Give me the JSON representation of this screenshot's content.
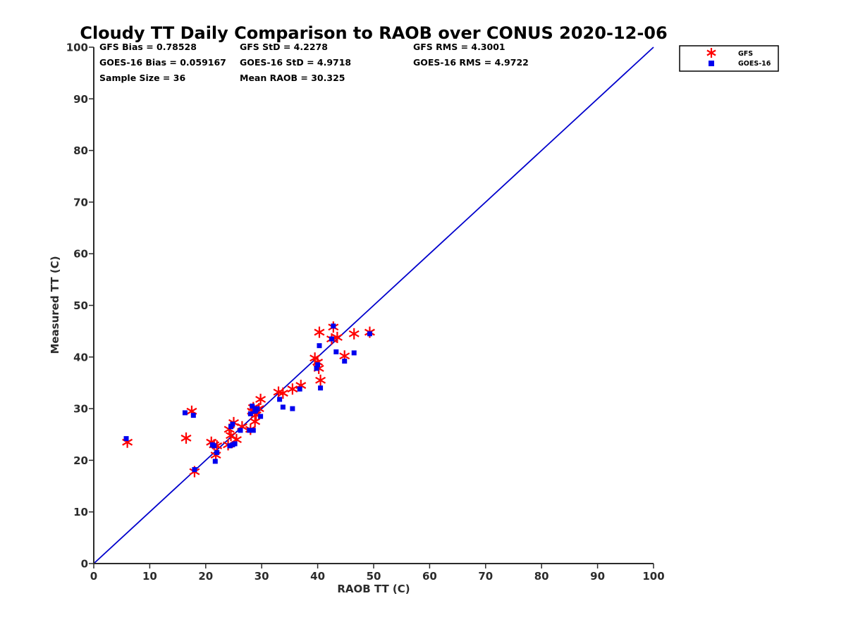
{
  "chart_data": {
    "type": "scatter",
    "title": "Cloudy TT Daily Comparison to RAOB over CONUS 2020-12-06",
    "xlabel": "RAOB TT (C)",
    "ylabel": "Measured TT (C)",
    "xlim": [
      0,
      100
    ],
    "ylim": [
      0,
      100
    ],
    "xticks": [
      "0",
      "10",
      "20",
      "30",
      "40",
      "50",
      "60",
      "70",
      "80",
      "90",
      "100"
    ],
    "yticks": [
      "0",
      "10",
      "20",
      "30",
      "40",
      "50",
      "60",
      "70",
      "80",
      "90",
      "100"
    ],
    "grid": false,
    "legend_position": "top-right",
    "stats": [
      [
        "GFS Bias = 0.78528",
        "GFS StD = 4.2278",
        "GFS RMS = 4.3001"
      ],
      [
        "GOES-16 Bias = 0.059167",
        "GOES-16 StD = 4.9718",
        "GOES-16 RMS = 4.9722"
      ],
      [
        "Sample Size = 36",
        "Mean RAOB = 30.325",
        ""
      ]
    ],
    "reference_line": {
      "x": [
        0,
        100
      ],
      "y": [
        0,
        100
      ],
      "color": "#0000cc"
    },
    "series": [
      {
        "name": "GFS",
        "marker": "asterisk",
        "color": "#ff0000",
        "points": [
          [
            6.0,
            23.5
          ],
          [
            16.5,
            24.3
          ],
          [
            17.5,
            29.5
          ],
          [
            18.0,
            17.8
          ],
          [
            21.0,
            23.5
          ],
          [
            21.5,
            23.0
          ],
          [
            21.8,
            21.0
          ],
          [
            22.0,
            22.8
          ],
          [
            24.0,
            23.0
          ],
          [
            24.2,
            26.0
          ],
          [
            24.5,
            24.8
          ],
          [
            25.0,
            27.3
          ],
          [
            25.5,
            24.0
          ],
          [
            26.5,
            26.5
          ],
          [
            28.0,
            26.0
          ],
          [
            28.3,
            29.5
          ],
          [
            28.8,
            27.5
          ],
          [
            29.0,
            28.8
          ],
          [
            29.5,
            30.0
          ],
          [
            29.8,
            31.8
          ],
          [
            33.0,
            33.2
          ],
          [
            33.8,
            33.0
          ],
          [
            35.5,
            33.8
          ],
          [
            37.0,
            34.5
          ],
          [
            39.5,
            39.8
          ],
          [
            40.2,
            37.8
          ],
          [
            40.3,
            44.8
          ],
          [
            40.5,
            35.5
          ],
          [
            42.5,
            43.5
          ],
          [
            42.8,
            45.8
          ],
          [
            43.5,
            43.8
          ],
          [
            44.8,
            40.2
          ],
          [
            46.5,
            44.5
          ],
          [
            49.3,
            44.8
          ],
          [
            40.0,
            39.0
          ],
          [
            28.5,
            30.2
          ]
        ]
      },
      {
        "name": "GOES-16",
        "marker": "square",
        "color": "#0000ee",
        "points": [
          [
            5.8,
            24.2
          ],
          [
            16.3,
            29.2
          ],
          [
            17.8,
            28.7
          ],
          [
            18.0,
            18.2
          ],
          [
            21.2,
            23.0
          ],
          [
            21.5,
            22.8
          ],
          [
            21.7,
            19.8
          ],
          [
            22.0,
            21.5
          ],
          [
            24.3,
            22.8
          ],
          [
            24.5,
            26.5
          ],
          [
            24.8,
            23.0
          ],
          [
            25.2,
            23.2
          ],
          [
            24.8,
            27.0
          ],
          [
            26.2,
            25.8
          ],
          [
            27.8,
            25.8
          ],
          [
            28.3,
            30.5
          ],
          [
            28.5,
            25.8
          ],
          [
            28.8,
            29.5
          ],
          [
            29.2,
            30.0
          ],
          [
            29.8,
            28.5
          ],
          [
            33.2,
            31.8
          ],
          [
            33.8,
            30.3
          ],
          [
            35.5,
            30.0
          ],
          [
            36.8,
            33.8
          ],
          [
            39.8,
            37.8
          ],
          [
            40.0,
            38.5
          ],
          [
            40.3,
            42.2
          ],
          [
            40.5,
            34.0
          ],
          [
            42.5,
            43.5
          ],
          [
            42.8,
            46.0
          ],
          [
            43.3,
            41.0
          ],
          [
            44.8,
            39.2
          ],
          [
            46.5,
            40.8
          ],
          [
            49.3,
            44.5
          ],
          [
            28.0,
            29.0
          ],
          [
            29.0,
            29.8
          ]
        ]
      }
    ]
  }
}
